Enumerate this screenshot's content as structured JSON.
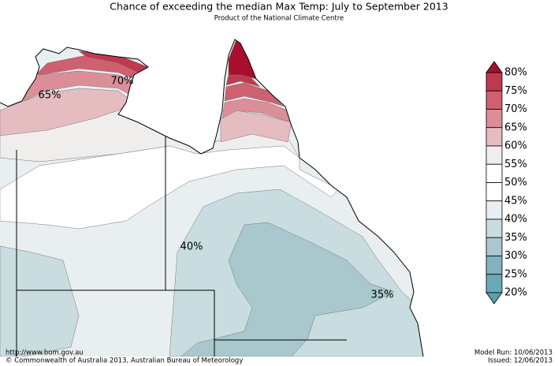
{
  "title": "Chance of exceeding the median Max Temp: July to September 2013",
  "subtitle": "Product of the National Climate Centre",
  "legend": {
    "labels": [
      "80%",
      "75%",
      "70%",
      "65%",
      "60%",
      "55%",
      "50%",
      "45%",
      "40%",
      "35%",
      "30%",
      "25%",
      "20%"
    ],
    "colors": [
      "#a8102e",
      "#c0394e",
      "#cf6070",
      "#dc8e98",
      "#e5bcc0",
      "#f0eeec",
      "#ffffff",
      "#ffffff",
      "#e9eff1",
      "#c9dde0",
      "#a8c8cd",
      "#7fb3bd",
      "#6aaab8",
      "#5a9fb0"
    ]
  },
  "contour_labels": [
    "70%",
    "65%",
    "40%",
    "35%"
  ],
  "footer": {
    "url": "http://www.bom.gov.au",
    "copyright": "©  Commonwealth of Australia 2013, Australian Bureau of Meteorology",
    "model_run": "Model Run: 10/06/2013",
    "issued": "Issued: 12/06/2013"
  }
}
